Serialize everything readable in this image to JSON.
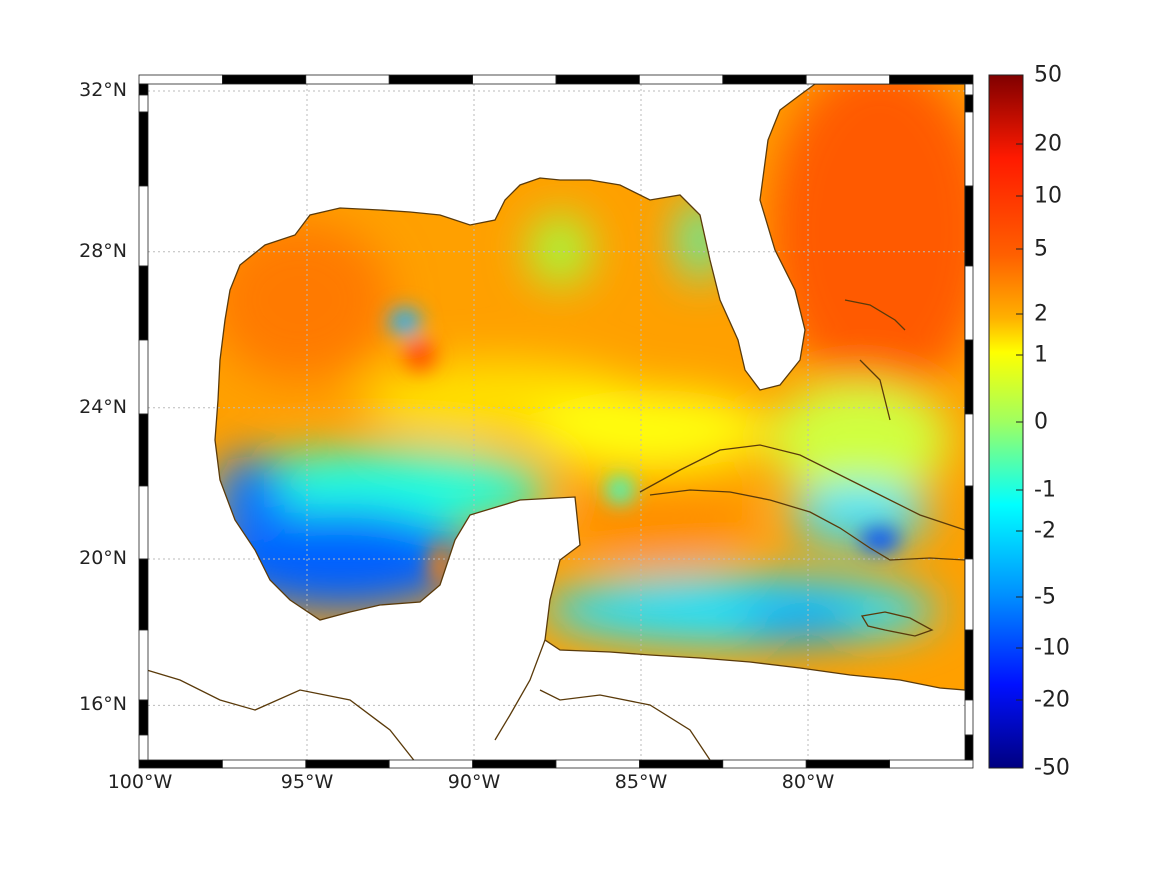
{
  "map": {
    "lat_labels": [
      {
        "text": "32°N",
        "lat": 32
      },
      {
        "text": "28°N",
        "lat": 28
      },
      {
        "text": "24°N",
        "lat": 24
      },
      {
        "text": "20°N",
        "lat": 20
      },
      {
        "text": "16°N",
        "lat": 16
      }
    ],
    "lon_labels": [
      {
        "text": "100°W",
        "lon": -100
      },
      {
        "text": "95°W",
        "lon": -95
      },
      {
        "text": "90°W",
        "lon": -90
      },
      {
        "text": "85°W",
        "lon": -85
      },
      {
        "text": "80°W",
        "lon": -80
      }
    ],
    "extent": {
      "lon": [
        -100,
        -75
      ],
      "lat": [
        14.2,
        33
      ]
    },
    "coast_color": "#5a3a0a"
  },
  "colorbar": {
    "ticks": [
      "50",
      "20",
      "10",
      "5",
      "2",
      "1",
      "0",
      "-1",
      "-2",
      "-5",
      "-10",
      "-20",
      "-50"
    ],
    "colormap": "jet"
  }
}
